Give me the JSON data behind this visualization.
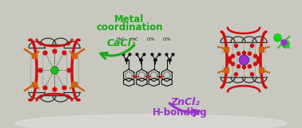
{
  "background_color": "#c8c8c0",
  "top_label_line1": "Metal",
  "top_label_line2": "coordination",
  "top_label_color": "#1aaa1a",
  "top_chemical": "CaCl₂",
  "top_chemical_color": "#1aaa1a",
  "bottom_label": "H-bonding",
  "bottom_label_color": "#9933cc",
  "bottom_chemical": "ZnCl₂",
  "bottom_chemical_color": "#9933cc",
  "fig_width": 3.78,
  "fig_height": 1.61,
  "dpi": 100,
  "orange_color": "#d06010",
  "red_color": "#cc1010",
  "gray_color": "#787878",
  "light_gray": "#a0a0a0",
  "dark_gray": "#303030",
  "green_metal": "#22bb22",
  "purple_metal": "#9933cc",
  "green_cl": "#22cc22",
  "white": "#ffffff"
}
